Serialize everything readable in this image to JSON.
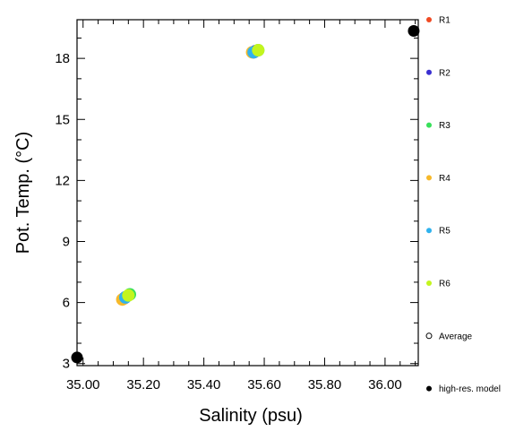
{
  "chart_data": {
    "type": "scatter",
    "xlabel": "Salinity (psu)",
    "ylabel": "Pot. Temp. (°C)",
    "xlim": [
      34.98,
      36.11
    ],
    "ylim": [
      2.9,
      19.9
    ],
    "xticks": [
      35.0,
      35.2,
      35.4,
      35.6,
      35.8,
      36.0
    ],
    "xtick_labels": [
      "35.00",
      "35.20",
      "35.40",
      "35.60",
      "35.80",
      "36.00"
    ],
    "yticks": [
      3,
      6,
      9,
      12,
      15,
      18
    ],
    "ytick_labels": [
      "3",
      "6",
      "9",
      "12",
      "15",
      "18"
    ],
    "grid": false,
    "legend_position": "right",
    "series": [
      {
        "name": "R1",
        "color": "#f04a23",
        "marker": "filled-circle",
        "x": [
          35.135,
          35.565
        ],
        "y": [
          6.2,
          18.3
        ]
      },
      {
        "name": "R2",
        "color": "#3a2fd1",
        "marker": "filled-circle",
        "x": [
          35.14,
          35.57
        ],
        "y": [
          6.25,
          18.35
        ]
      },
      {
        "name": "R3",
        "color": "#38e05a",
        "marker": "filled-circle",
        "x": [
          35.155,
          35.58
        ],
        "y": [
          6.4,
          18.4
        ]
      },
      {
        "name": "R4",
        "color": "#f7b92a",
        "marker": "filled-circle",
        "x": [
          35.13,
          35.56
        ],
        "y": [
          6.15,
          18.3
        ]
      },
      {
        "name": "R5",
        "color": "#2fb2ee",
        "marker": "filled-circle",
        "x": [
          35.14,
          35.565
        ],
        "y": [
          6.25,
          18.3
        ]
      },
      {
        "name": "R6",
        "color": "#c3f51e",
        "marker": "filled-circle",
        "x": [
          35.15,
          35.58
        ],
        "y": [
          6.35,
          18.4
        ]
      },
      {
        "name": "Average",
        "color": "#000000",
        "marker": "open-circle",
        "x": [],
        "y": []
      },
      {
        "name": "high-res. model",
        "color": "#000000",
        "marker": "filled-circle",
        "x": [
          34.98,
          36.095
        ],
        "y": [
          3.3,
          19.35
        ]
      }
    ]
  }
}
